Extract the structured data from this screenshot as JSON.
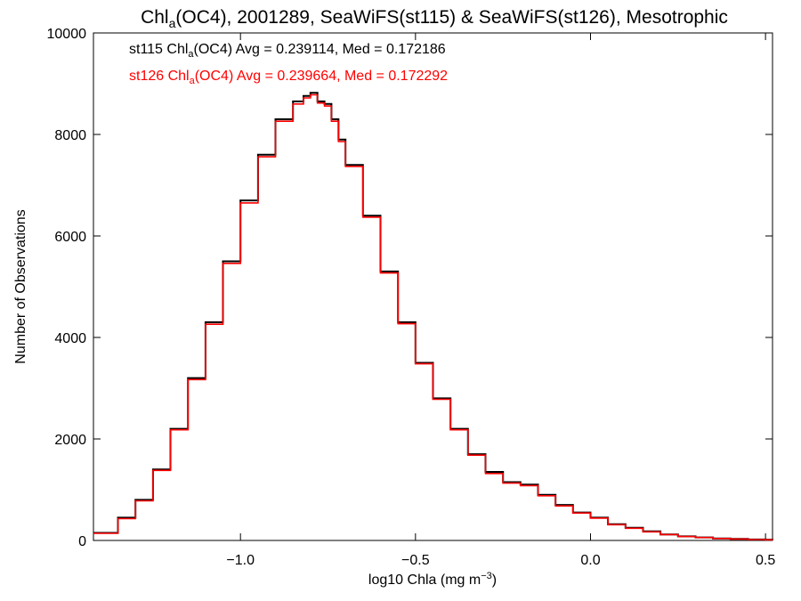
{
  "chart_data": {
    "type": "step",
    "title": {
      "main": "Chl",
      "sub": "a",
      "rest": "(OC4), 2001289, SeaWiFS(st115) & SeaWiFS(st126), Mesotrophic"
    },
    "xlabel": {
      "main": "log10 Chla (mg m",
      "sup": "−3",
      "end": ")"
    },
    "ylabel": "Number of Observations",
    "xlim": [
      -1.42,
      0.52
    ],
    "ylim": [
      0,
      10000
    ],
    "xticks": [
      {
        "value": -1.0,
        "label": "−1.0"
      },
      {
        "value": -0.5,
        "label": "−0.5"
      },
      {
        "value": 0.0,
        "label": "0.0"
      },
      {
        "value": 0.5,
        "label": "0.5"
      }
    ],
    "yticks": [
      {
        "value": 0,
        "label": "0"
      },
      {
        "value": 2000,
        "label": "2000"
      },
      {
        "value": 4000,
        "label": "4000"
      },
      {
        "value": 6000,
        "label": "6000"
      },
      {
        "value": 8000,
        "label": "8000"
      },
      {
        "value": 10000,
        "label": "10000"
      }
    ],
    "annotations": [
      {
        "prefix": "st115 Chl",
        "sub": "a",
        "rest": "(OC4) Avg = 0.239114, Med = 0.172186",
        "color": "#000000"
      },
      {
        "prefix": "st126 Chl",
        "sub": "a",
        "rest": "(OC4) Avg = 0.239664, Med = 0.172292",
        "color": "#ff0000"
      }
    ],
    "series": [
      {
        "color": "#000000",
        "x": [
          -1.42,
          -1.35,
          -1.3,
          -1.25,
          -1.2,
          -1.15,
          -1.1,
          -1.05,
          -1.0,
          -0.95,
          -0.9,
          -0.85,
          -0.82,
          -0.8,
          -0.78,
          -0.76,
          -0.74,
          -0.72,
          -0.7,
          -0.65,
          -0.6,
          -0.55,
          -0.5,
          -0.45,
          -0.4,
          -0.35,
          -0.3,
          -0.25,
          -0.2,
          -0.15,
          -0.1,
          -0.05,
          0.0,
          0.05,
          0.1,
          0.15,
          0.2,
          0.25,
          0.3,
          0.35,
          0.4,
          0.45,
          0.5,
          0.52
        ],
        "y": [
          150,
          450,
          800,
          1400,
          2200,
          3200,
          4300,
          5500,
          6700,
          7600,
          8300,
          8650,
          8760,
          8820,
          8650,
          8600,
          8300,
          7900,
          7400,
          6400,
          5300,
          4300,
          3500,
          2800,
          2200,
          1700,
          1350,
          1150,
          1100,
          900,
          700,
          550,
          450,
          320,
          250,
          180,
          120,
          80,
          60,
          40,
          30,
          20,
          15,
          10
        ]
      },
      {
        "color": "#ff0000",
        "x": [
          -1.42,
          -1.35,
          -1.3,
          -1.25,
          -1.2,
          -1.15,
          -1.1,
          -1.05,
          -1.0,
          -0.95,
          -0.9,
          -0.85,
          -0.82,
          -0.8,
          -0.78,
          -0.76,
          -0.74,
          -0.72,
          -0.7,
          -0.65,
          -0.6,
          -0.55,
          -0.5,
          -0.45,
          -0.4,
          -0.35,
          -0.3,
          -0.25,
          -0.2,
          -0.15,
          -0.1,
          -0.05,
          0.0,
          0.05,
          0.1,
          0.15,
          0.2,
          0.25,
          0.3,
          0.35,
          0.4,
          0.45,
          0.5,
          0.52
        ],
        "y": [
          140,
          430,
          780,
          1380,
          2180,
          3170,
          4260,
          5460,
          6650,
          7560,
          8260,
          8600,
          8720,
          8780,
          8620,
          8560,
          8260,
          7860,
          7370,
          6370,
          5270,
          4270,
          3480,
          2780,
          2180,
          1680,
          1320,
          1130,
          1080,
          880,
          680,
          540,
          440,
          310,
          240,
          170,
          115,
          78,
          58,
          38,
          28,
          18,
          13,
          8
        ]
      }
    ]
  }
}
